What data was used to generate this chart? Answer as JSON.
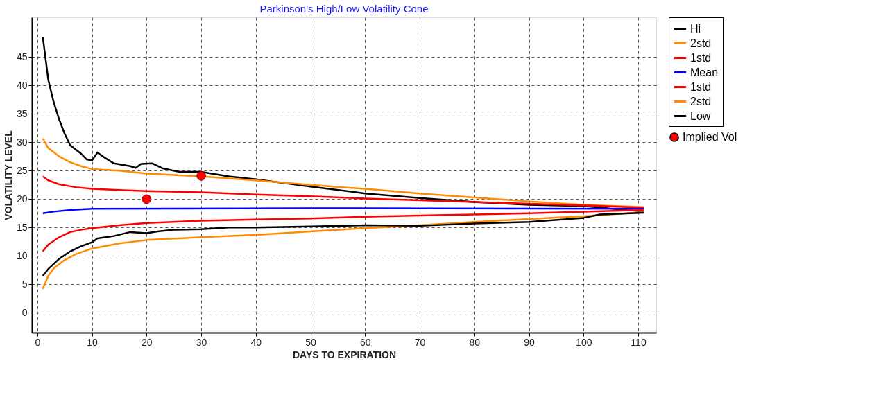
{
  "chart_data": {
    "type": "line",
    "title": "Parkinson's High/Low Volatility Cone",
    "xlabel": "DAYS TO EXPIRATION",
    "ylabel": "VOLATILITY LEVEL",
    "xlim": [
      -1,
      113.3
    ],
    "ylim": [
      -3.5,
      52
    ],
    "xticks": [
      0,
      10,
      20,
      30,
      40,
      50,
      60,
      70,
      80,
      90,
      100,
      110
    ],
    "yticks": [
      0,
      5,
      10,
      15,
      20,
      25,
      30,
      35,
      40,
      45
    ],
    "grid": true,
    "legend": "top right",
    "marker": "none",
    "line_style": "solid",
    "series": [
      {
        "name": "Hi",
        "color": "#000000",
        "x": [
          1,
          2,
          3,
          4,
          5,
          6,
          8,
          9,
          10,
          11,
          12,
          14,
          17,
          18,
          19,
          21,
          23,
          26,
          30,
          35,
          40,
          50,
          60,
          70,
          80,
          90,
          100,
          111
        ],
        "values": [
          48.5,
          41,
          37,
          34,
          31.5,
          29.5,
          28,
          27,
          26.8,
          28.2,
          27.5,
          26.3,
          25.8,
          25.5,
          26.2,
          26.3,
          25.4,
          24.8,
          24.8,
          24,
          23.5,
          22.2,
          21,
          20.2,
          19.5,
          19,
          18.8,
          17.8
        ]
      },
      {
        "name": "2std",
        "color": "#ff8c00",
        "type": "line",
        "x": [
          1,
          2,
          4,
          6,
          8,
          10,
          15,
          20,
          30,
          40,
          50,
          60,
          70,
          80,
          90,
          100,
          111
        ],
        "values": [
          30.7,
          29,
          27.5,
          26.5,
          25.8,
          25.3,
          25,
          24.5,
          24,
          23.3,
          22.5,
          21.8,
          21,
          20.3,
          19.6,
          19,
          18.6
        ]
      },
      {
        "name": "1std",
        "color": "#ff0000",
        "type": "line",
        "x": [
          1,
          2,
          4,
          7,
          10,
          15,
          20,
          30,
          40,
          50,
          60,
          70,
          80,
          90,
          100,
          111
        ],
        "values": [
          24,
          23.3,
          22.6,
          22.1,
          21.8,
          21.6,
          21.4,
          21.2,
          20.8,
          20.5,
          20.1,
          19.8,
          19.5,
          19.2,
          18.9,
          18.5
        ]
      },
      {
        "name": "Mean",
        "color": "#0000ff",
        "x": [
          1,
          3,
          6,
          10,
          50,
          111
        ],
        "values": [
          17.5,
          17.8,
          18.1,
          18.3,
          18.4,
          18.3
        ]
      },
      {
        "name": "1std",
        "color": "#ff0000",
        "type": "line",
        "x": [
          1,
          2,
          4,
          6,
          8,
          10,
          15,
          20,
          30,
          40,
          50,
          60,
          70,
          80,
          90,
          100,
          111
        ],
        "values": [
          10.8,
          12,
          13.3,
          14.2,
          14.6,
          14.9,
          15.4,
          15.8,
          16.2,
          16.4,
          16.6,
          16.9,
          17.1,
          17.3,
          17.5,
          17.8,
          18.1
        ]
      },
      {
        "name": "2std",
        "color": "#ff8c00",
        "type": "line",
        "x": [
          1,
          2,
          3,
          5,
          7,
          10,
          15,
          20,
          30,
          40,
          50,
          60,
          70,
          80,
          90,
          100,
          111
        ],
        "values": [
          4.2,
          6.5,
          7.8,
          9.3,
          10.3,
          11.3,
          12.2,
          12.8,
          13.3,
          13.7,
          14.3,
          14.9,
          15.4,
          16,
          16.5,
          17,
          17.7
        ]
      },
      {
        "name": "Low",
        "color": "#000000",
        "type": "line",
        "x": [
          1,
          2,
          4,
          6,
          8,
          10,
          11,
          14,
          17,
          20,
          22,
          25,
          30,
          35,
          40,
          50,
          60,
          70,
          80,
          90,
          100,
          103,
          111
        ],
        "values": [
          6.5,
          7.7,
          9.5,
          10.8,
          11.7,
          12.4,
          13.1,
          13.5,
          14.2,
          14,
          14.3,
          14.6,
          14.7,
          15,
          15,
          15.2,
          15.4,
          15.3,
          15.7,
          16,
          16.7,
          17.3,
          17.6
        ]
      },
      {
        "name": "Implied Vol",
        "color": "#ff0000",
        "type": "scatter",
        "marker": "circle",
        "x": [
          20,
          30
        ],
        "values": [
          20,
          24.1
        ]
      }
    ]
  }
}
